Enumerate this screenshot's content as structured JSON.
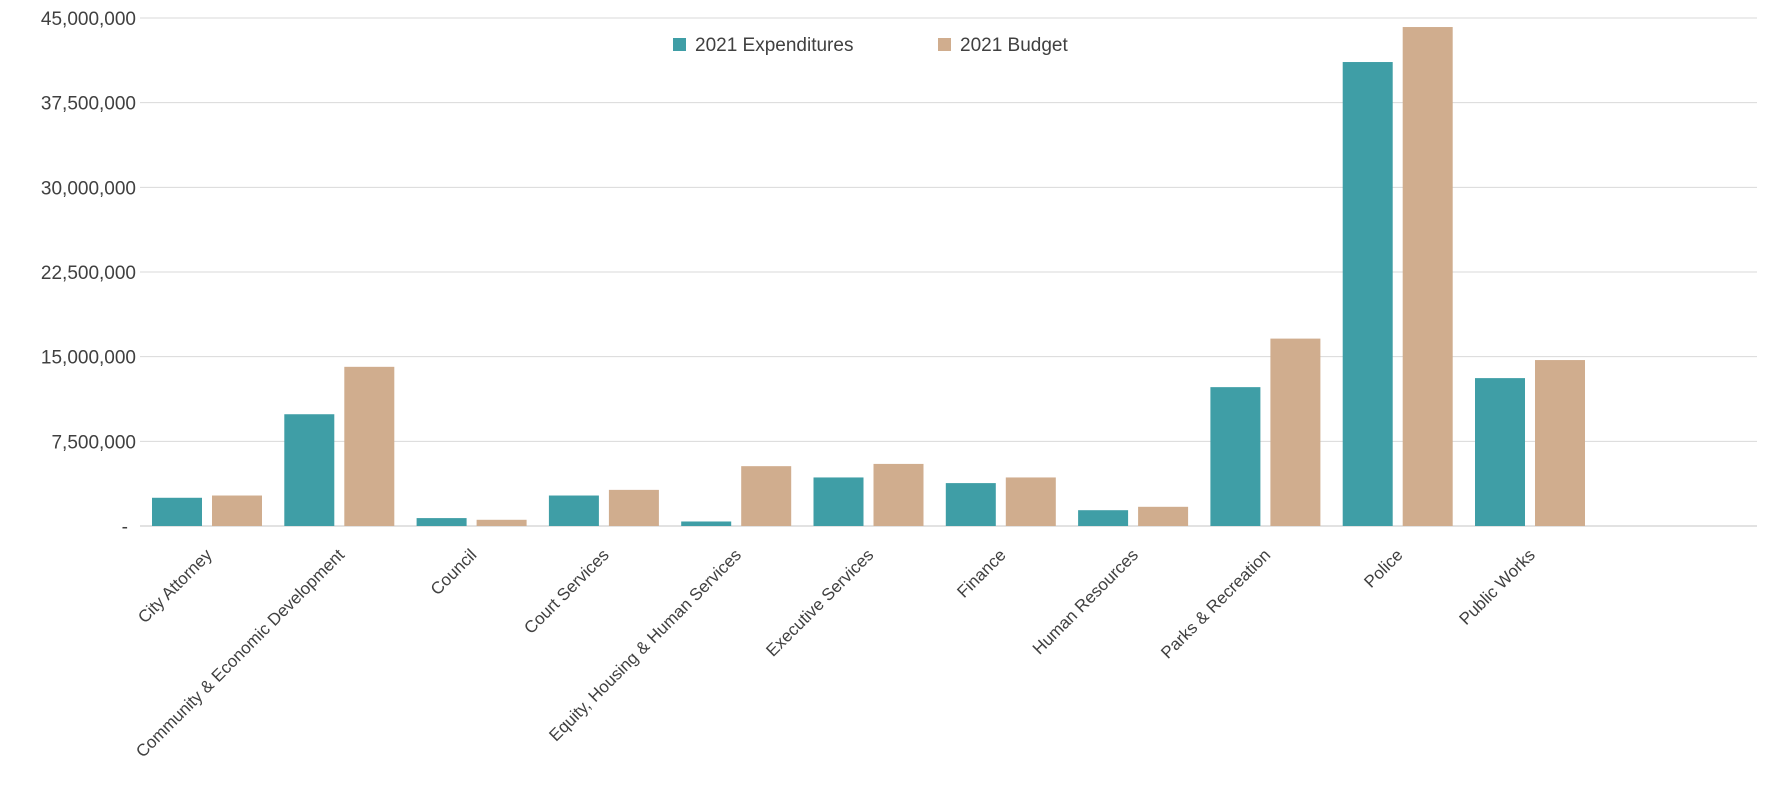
{
  "chart_data": {
    "type": "bar",
    "title": "",
    "xlabel": "",
    "ylabel": "",
    "ylim": [
      0,
      45000000
    ],
    "yticks": [
      0,
      7500000,
      15000000,
      22500000,
      30000000,
      37500000,
      45000000
    ],
    "ytick_labels": [
      "-",
      "7,500,000",
      "15,000,000",
      "22,500,000",
      "30,000,000",
      "37,500,000",
      "45,000,000"
    ],
    "grid": true,
    "legend_position": "top-center",
    "categories": [
      "City Attorney",
      "Community & Economic Development",
      "Council",
      "Court Services",
      "Equity, Housing & Human Services",
      "Executive Services",
      "Finance",
      "Human Resources",
      "Parks & Recreation",
      "Police",
      "Public Works"
    ],
    "series": [
      {
        "name": "2021 Expenditures",
        "color": "#3f9ea6",
        "values": [
          2500000,
          9900000,
          700000,
          2700000,
          400000,
          4300000,
          3800000,
          1400000,
          12300000,
          41100000,
          13100000
        ]
      },
      {
        "name": "2021 Budget",
        "color": "#d0ad8e",
        "values": [
          2700000,
          14100000,
          550000,
          3200000,
          5300000,
          5500000,
          4300000,
          1700000,
          16600000,
          44200000,
          14700000
        ]
      }
    ]
  }
}
